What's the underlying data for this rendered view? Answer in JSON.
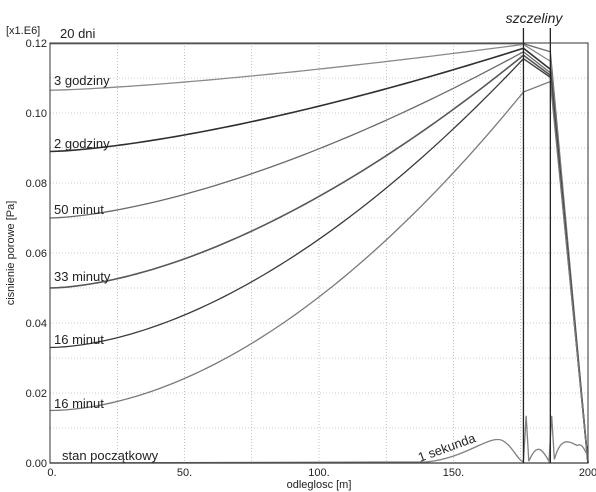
{
  "chart_data": {
    "type": "line",
    "xlabel": "odleglosc [m]",
    "ylabel": "cisnienie porowe [Pa]",
    "y_multiplier": "[x1.E6]",
    "xlim": [
      0,
      200
    ],
    "ylim": [
      0,
      0.12
    ],
    "grid": true,
    "x_ticks": [
      "0.",
      "50.",
      "100.",
      "150.",
      "200"
    ],
    "y_ticks": [
      "0.00",
      "0.02",
      "0.04",
      "0.06",
      "0.08",
      "0.10",
      "0.12"
    ],
    "fractures_label": "szczeliny",
    "fractures_x": [
      176,
      186
    ],
    "series": [
      {
        "name": "20 dni",
        "color": "#6e6e6e",
        "x": [
          0,
          176,
          186,
          200
        ],
        "y": [
          0.1198,
          0.1198,
          0.1175,
          0.0
        ]
      },
      {
        "name": "3 godziny",
        "color": "#8a8a8a",
        "x": [
          0,
          176,
          186,
          200
        ],
        "y": [
          0.1065,
          0.1196,
          0.1148,
          0.0
        ]
      },
      {
        "name": "2 godziny",
        "color": "#2f2f2f",
        "x": [
          0,
          176,
          186,
          200
        ],
        "y": [
          0.089,
          0.1185,
          0.1125,
          0.0
        ]
      },
      {
        "name": "50 minut",
        "color": "#6a6a6a",
        "x": [
          0,
          176,
          186,
          200
        ],
        "y": [
          0.07,
          0.1175,
          0.1115,
          0.0
        ]
      },
      {
        "name": "33 minuty",
        "color": "#575757",
        "x": [
          0,
          176,
          186,
          200
        ],
        "y": [
          0.05,
          0.1165,
          0.1108,
          0.0
        ]
      },
      {
        "name": "16 minut",
        "color": "#3a3a3a",
        "x": [
          0,
          176,
          186,
          200
        ],
        "y": [
          0.033,
          0.1155,
          0.1102,
          0.0
        ]
      },
      {
        "name": "16 minut",
        "color": "#7a7a7a",
        "x": [
          0,
          176,
          186,
          200
        ],
        "y": [
          0.015,
          0.106,
          0.109,
          0.0
        ]
      },
      {
        "name": "1 sekunda",
        "color": "#808080",
        "x": [
          0,
          150,
          165,
          172,
          176,
          180,
          186,
          190,
          195,
          200
        ],
        "y": [
          0.0,
          0.0005,
          0.006,
          0.004,
          0.0005,
          0.0005,
          0.0005,
          0.003,
          0.006,
          0.002
        ]
      },
      {
        "name": "stan początkowy",
        "color": "#444444",
        "x": [
          0,
          200
        ],
        "y": [
          0.0,
          0.0
        ]
      }
    ]
  }
}
